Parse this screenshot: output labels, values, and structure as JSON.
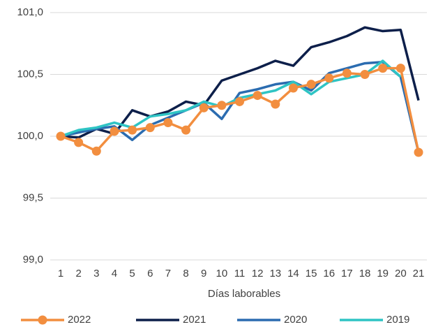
{
  "chart_data": {
    "type": "line",
    "x_label": "Días laborables",
    "categories": [
      "1",
      "2",
      "3",
      "4",
      "5",
      "6",
      "7",
      "8",
      "9",
      "10",
      "11",
      "12",
      "13",
      "14",
      "15",
      "16",
      "17",
      "18",
      "19",
      "20",
      "21"
    ],
    "series": [
      {
        "name": "2022",
        "color": "#f28e3f",
        "marker": true,
        "values": [
          100.0,
          99.95,
          99.88,
          100.04,
          100.05,
          100.07,
          100.11,
          100.05,
          100.23,
          100.25,
          100.28,
          100.33,
          100.26,
          100.39,
          100.42,
          100.47,
          100.51,
          100.5,
          100.55,
          100.55,
          99.87
        ]
      },
      {
        "name": "2021",
        "color": "#0d1f4a",
        "marker": false,
        "values": [
          100.0,
          99.99,
          100.06,
          100.02,
          100.21,
          100.16,
          100.2,
          100.28,
          100.25,
          100.45,
          100.5,
          100.55,
          100.61,
          100.57,
          100.72,
          100.76,
          100.81,
          100.88,
          100.85,
          100.86,
          100.29
        ]
      },
      {
        "name": "2020",
        "color": "#2b6cb0",
        "marker": false,
        "values": [
          100.0,
          100.03,
          100.06,
          100.08,
          99.97,
          100.09,
          100.15,
          100.21,
          100.27,
          100.14,
          100.35,
          100.38,
          100.42,
          100.44,
          100.37,
          100.51,
          100.55,
          100.59,
          100.6,
          100.48,
          99.87
        ]
      },
      {
        "name": "2019",
        "color": "#2ec4c4",
        "marker": false,
        "values": [
          100.0,
          100.05,
          100.07,
          100.11,
          100.07,
          100.16,
          100.18,
          100.21,
          100.28,
          100.24,
          100.31,
          100.34,
          100.37,
          100.44,
          100.34,
          100.44,
          100.47,
          100.5,
          100.61,
          100.48,
          null
        ]
      }
    ],
    "ylim": [
      99.0,
      101.0
    ],
    "yticks": [
      {
        "value": 99.0,
        "label": "99,0"
      },
      {
        "value": 99.5,
        "label": "99,5"
      },
      {
        "value": 100.0,
        "label": "100,0"
      },
      {
        "value": 100.5,
        "label": "100,5"
      },
      {
        "value": 101.0,
        "label": "101,0"
      }
    ],
    "grid": true,
    "legend": "bottom"
  }
}
